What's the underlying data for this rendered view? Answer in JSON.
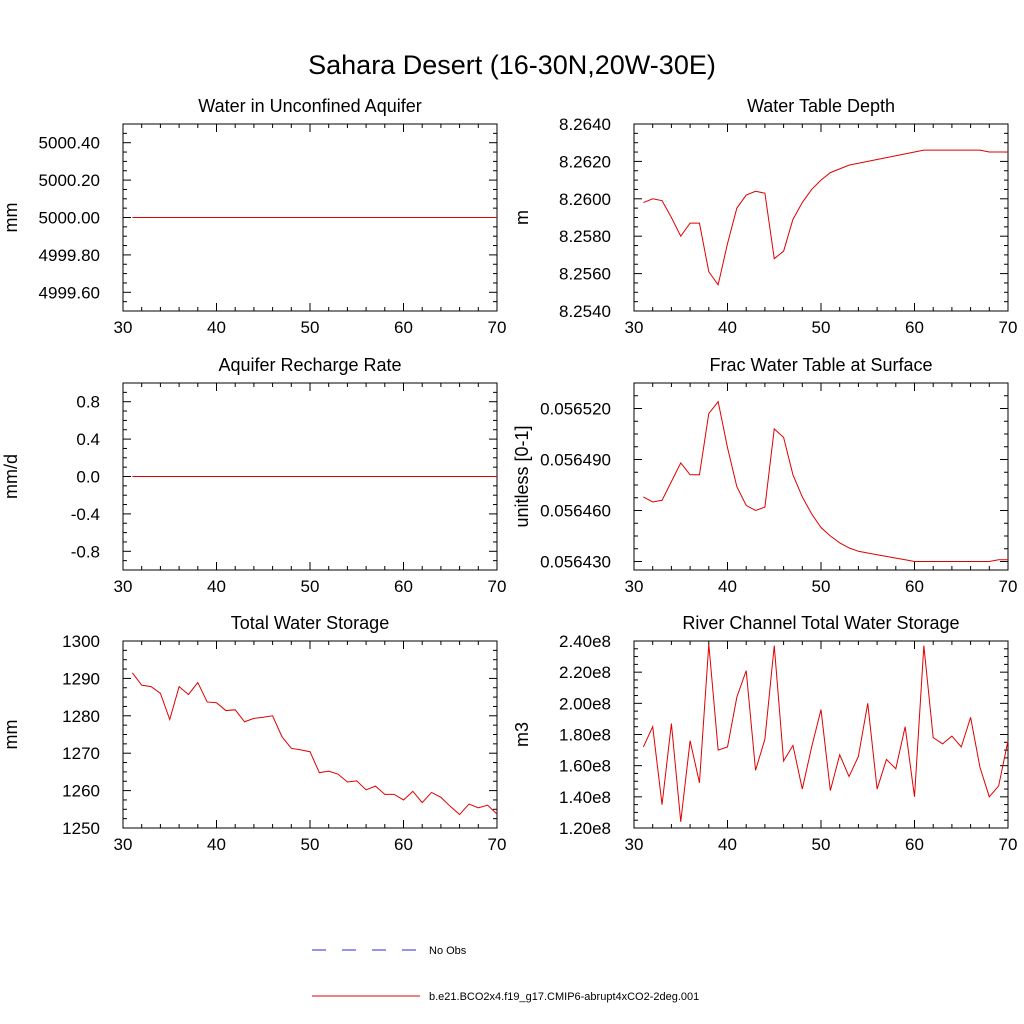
{
  "figure_title": "Sahara Desert (16-30N,20W-30E)",
  "colors": {
    "model": "#e00000",
    "obs": "#2b2bd6",
    "axis": "#000000"
  },
  "legend": [
    {
      "label": "No Obs",
      "style": "dashed",
      "color": "#2b2bd6"
    },
    {
      "label": "b.e21.BCO2x4.f19_g17.CMIP6-abrupt4xCO2-2deg.001",
      "style": "solid",
      "color": "#e00000"
    }
  ],
  "chart_data": [
    {
      "type": "line",
      "title": "Water in Unconfined Aquifer",
      "ylabel": "mm",
      "xlim": [
        30,
        70
      ],
      "ylim": [
        4999.5,
        5000.5
      ],
      "xticks": [
        30,
        40,
        50,
        60,
        70
      ],
      "yticks": [
        4999.6,
        4999.8,
        5000.0,
        5000.2,
        5000.4
      ],
      "ytick_labels": [
        "4999.60",
        "4999.80",
        "5000.00",
        "5000.20",
        "5000.40"
      ],
      "x": [
        31,
        70
      ],
      "series": [
        {
          "values": [
            5000.0,
            5000.0
          ]
        }
      ]
    },
    {
      "type": "line",
      "title": "Water Table Depth",
      "ylabel": "m",
      "xlim": [
        30,
        70
      ],
      "ylim": [
        8.254,
        8.264
      ],
      "xticks": [
        30,
        40,
        50,
        60,
        70
      ],
      "yticks": [
        8.254,
        8.256,
        8.258,
        8.26,
        8.262,
        8.264
      ],
      "ytick_labels": [
        "8.2540",
        "8.2560",
        "8.2580",
        "8.2600",
        "8.2620",
        "8.2640"
      ],
      "x": [
        31,
        32,
        33,
        34,
        35,
        36,
        37,
        38,
        39,
        40,
        41,
        42,
        43,
        44,
        45,
        46,
        47,
        48,
        49,
        50,
        51,
        52,
        53,
        54,
        55,
        56,
        57,
        58,
        59,
        60,
        61,
        62,
        63,
        64,
        65,
        66,
        67,
        68,
        69,
        70
      ],
      "series": [
        {
          "values": [
            8.2598,
            8.26,
            8.2599,
            8.259,
            8.258,
            8.2587,
            8.2587,
            8.2561,
            8.2554,
            8.2576,
            8.2595,
            8.2602,
            8.2604,
            8.2603,
            8.2568,
            8.2572,
            8.2589,
            8.2598,
            8.2605,
            8.261,
            8.2614,
            8.2616,
            8.2618,
            8.2619,
            8.262,
            8.2621,
            8.2622,
            8.2623,
            8.2624,
            8.2625,
            8.2626,
            8.2626,
            8.2626,
            8.2626,
            8.2626,
            8.2626,
            8.2626,
            8.2625,
            8.2625,
            8.2625
          ]
        }
      ]
    },
    {
      "type": "line",
      "title": "Aquifer Recharge Rate",
      "ylabel": "mm/d",
      "xlim": [
        30,
        70
      ],
      "ylim": [
        -1.0,
        1.0
      ],
      "xticks": [
        30,
        40,
        50,
        60,
        70
      ],
      "yticks": [
        -0.8,
        -0.4,
        0.0,
        0.4,
        0.8
      ],
      "ytick_labels": [
        "-0.8",
        "-0.4",
        "0.0",
        "0.4",
        "0.8"
      ],
      "x": [
        31,
        70
      ],
      "series": [
        {
          "values": [
            0.0,
            0.0
          ]
        }
      ]
    },
    {
      "type": "line",
      "title": "Frac Water Table at Surface",
      "ylabel": "unitless [0-1]",
      "xlim": [
        30,
        70
      ],
      "ylim": [
        0.056425,
        0.056535
      ],
      "xticks": [
        30,
        40,
        50,
        60,
        70
      ],
      "yticks": [
        0.05643,
        0.05646,
        0.05649,
        0.05652
      ],
      "ytick_labels": [
        "0.056430",
        "0.056460",
        "0.056490",
        "0.056520"
      ],
      "x": [
        31,
        32,
        33,
        34,
        35,
        36,
        37,
        38,
        39,
        40,
        41,
        42,
        43,
        44,
        45,
        46,
        47,
        48,
        49,
        50,
        51,
        52,
        53,
        54,
        55,
        56,
        57,
        58,
        59,
        60,
        61,
        62,
        63,
        64,
        65,
        66,
        67,
        68,
        69,
        70
      ],
      "series": [
        {
          "values": [
            0.056468,
            0.056465,
            0.056466,
            0.056477,
            0.056488,
            0.056481,
            0.056481,
            0.056517,
            0.056524,
            0.056497,
            0.056474,
            0.056463,
            0.05646,
            0.056462,
            0.056508,
            0.056503,
            0.056481,
            0.056468,
            0.056458,
            0.05645,
            0.056445,
            0.056441,
            0.056438,
            0.056436,
            0.056435,
            0.056434,
            0.056433,
            0.056432,
            0.056431,
            0.05643,
            0.05643,
            0.05643,
            0.05643,
            0.05643,
            0.05643,
            0.05643,
            0.05643,
            0.05643,
            0.056431,
            0.056431
          ]
        }
      ]
    },
    {
      "type": "line",
      "title": "Total Water Storage",
      "ylabel": "mm",
      "xlim": [
        30,
        70
      ],
      "ylim": [
        1250,
        1300
      ],
      "xticks": [
        30,
        40,
        50,
        60,
        70
      ],
      "yticks": [
        1250,
        1260,
        1270,
        1280,
        1290,
        1300
      ],
      "ytick_labels": [
        "1250",
        "1260",
        "1270",
        "1280",
        "1290",
        "1300"
      ],
      "x": [
        31,
        32,
        33,
        34,
        35,
        36,
        37,
        38,
        39,
        40,
        41,
        42,
        43,
        44,
        45,
        46,
        47,
        48,
        49,
        50,
        51,
        52,
        53,
        54,
        55,
        56,
        57,
        58,
        59,
        60,
        61,
        62,
        63,
        64,
        65,
        66,
        67,
        68,
        69,
        70
      ],
      "series": [
        {
          "values": [
            1291.5,
            1288.2,
            1287.8,
            1286.0,
            1279.0,
            1287.8,
            1285.7,
            1288.9,
            1283.7,
            1283.5,
            1281.4,
            1281.6,
            1278.4,
            1279.3,
            1279.6,
            1280.0,
            1274.4,
            1271.3,
            1270.9,
            1270.4,
            1264.8,
            1265.2,
            1264.4,
            1262.3,
            1262.6,
            1260.2,
            1261.2,
            1259.0,
            1259.0,
            1257.5,
            1259.8,
            1256.8,
            1259.5,
            1258.2,
            1255.8,
            1253.6,
            1256.4,
            1255.4,
            1256.1,
            1253.7
          ]
        }
      ]
    },
    {
      "type": "line",
      "title": "River Channel Total Water Storage",
      "ylabel": "m3",
      "xlim": [
        30,
        70
      ],
      "ylim": [
        120000000.0,
        240000000.0
      ],
      "xticks": [
        30,
        40,
        50,
        60,
        70
      ],
      "yticks": [
        120000000.0,
        140000000.0,
        160000000.0,
        180000000.0,
        200000000.0,
        220000000.0,
        240000000.0
      ],
      "ytick_labels": [
        "1.20e8",
        "1.40e8",
        "1.60e8",
        "1.80e8",
        "2.00e8",
        "2.20e8",
        "2.40e8"
      ],
      "x": [
        31,
        32,
        33,
        34,
        35,
        36,
        37,
        38,
        39,
        40,
        41,
        42,
        43,
        44,
        45,
        46,
        47,
        48,
        49,
        50,
        51,
        52,
        53,
        54,
        55,
        56,
        57,
        58,
        59,
        60,
        61,
        62,
        63,
        64,
        65,
        66,
        67,
        68,
        69,
        70
      ],
      "series": [
        {
          "values": [
            172000000.0,
            185000000.0,
            135000000.0,
            187000000.0,
            124000000.0,
            176000000.0,
            149000000.0,
            238000000.0,
            170000000.0,
            172000000.0,
            204000000.0,
            221000000.0,
            157000000.0,
            177000000.0,
            237000000.0,
            163000000.0,
            173000000.0,
            145000000.0,
            172000000.0,
            196000000.0,
            144000000.0,
            167000000.0,
            153000000.0,
            166000000.0,
            200000000.0,
            145000000.0,
            164000000.0,
            158000000.0,
            185000000.0,
            140000000.0,
            237000000.0,
            178000000.0,
            174000000.0,
            179000000.0,
            172000000.0,
            191000000.0,
            159000000.0,
            140000000.0,
            147000000.0,
            176000000.0
          ]
        }
      ]
    }
  ]
}
